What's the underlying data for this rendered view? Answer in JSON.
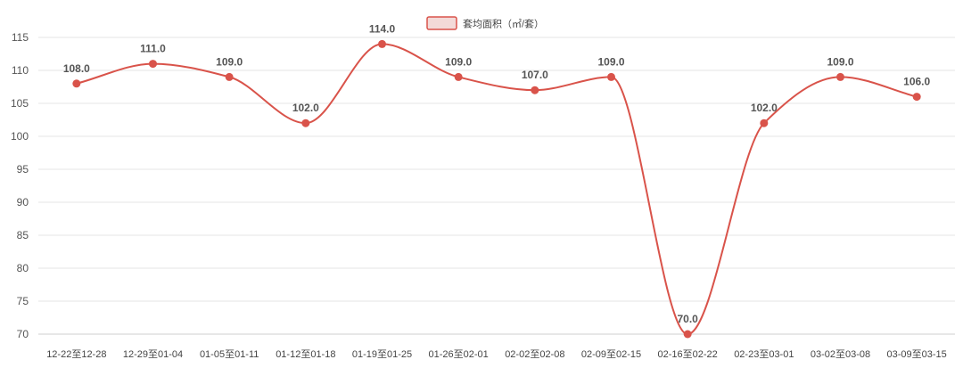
{
  "chart_data": {
    "type": "line",
    "categories": [
      "12-22至12-28",
      "12-29至01-04",
      "01-05至01-11",
      "01-12至01-18",
      "01-19至01-25",
      "01-26至02-01",
      "02-02至02-08",
      "02-09至02-15",
      "02-16至02-22",
      "02-23至03-01",
      "03-02至03-08",
      "03-09至03-15"
    ],
    "series": [
      {
        "name": "套均面积（㎡/套）",
        "values": [
          108,
          111,
          109,
          102,
          114,
          109,
          107,
          109,
          70,
          102,
          109,
          106
        ]
      }
    ],
    "data_labels": [
      "108.0",
      "111.0",
      "109.0",
      "102.0",
      "114.0",
      "109.0",
      "107.0",
      "109.0",
      "70.0",
      "102.0",
      "109.0",
      "106.0"
    ],
    "yticks": [
      "70",
      "75",
      "80",
      "85",
      "90",
      "95",
      "100",
      "105",
      "110",
      "115"
    ],
    "ylim": [
      70,
      115
    ],
    "grid": true,
    "legend_position": "top-center",
    "smooth": true,
    "colors": {
      "line": "#d9534a",
      "marker": "#d9534a",
      "legend_fill": "#f3dad8"
    }
  }
}
